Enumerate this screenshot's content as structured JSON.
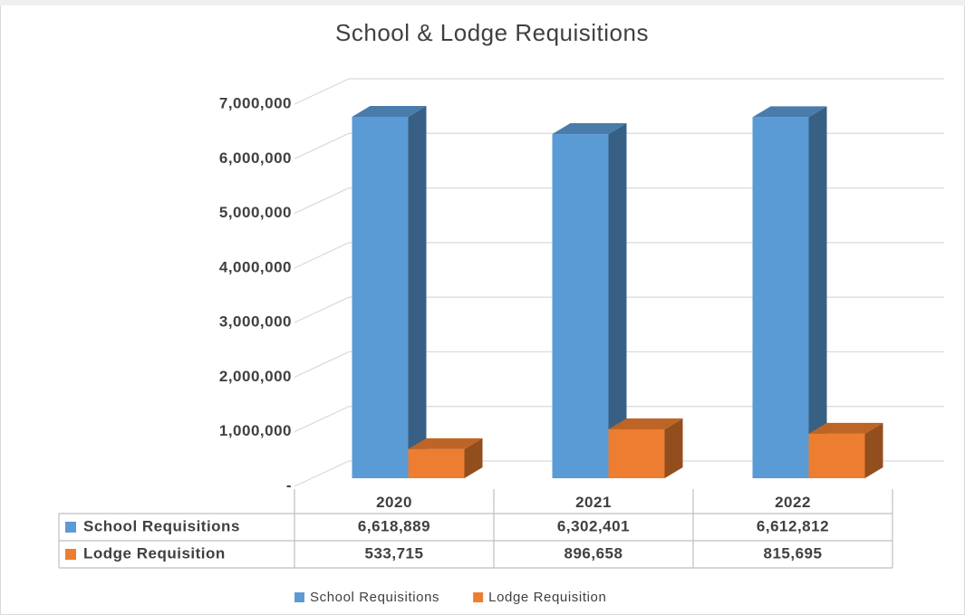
{
  "chart_data": {
    "type": "bar3d",
    "title": "School & Lodge Requisitions",
    "categories": [
      "2020",
      "2021",
      "2022"
    ],
    "series": [
      {
        "name": "School Requisitions",
        "color": "#5b9bd5",
        "values": [
          6618889,
          6302401,
          6612812
        ],
        "value_labels": [
          "6,618,889",
          "6,302,401",
          "6,612,812"
        ]
      },
      {
        "name": "Lodge Requisition",
        "color": "#ed7d31",
        "values": [
          533715,
          896658,
          815695
        ],
        "value_labels": [
          "533,715",
          "896,658",
          "815,695"
        ]
      }
    ],
    "ylim": [
      0,
      7000000
    ],
    "yticks": [
      {
        "value": 0,
        "label": "-"
      },
      {
        "value": 1000000,
        "label": "1,000,000"
      },
      {
        "value": 2000000,
        "label": "2,000,000"
      },
      {
        "value": 3000000,
        "label": "3,000,000"
      },
      {
        "value": 4000000,
        "label": "4,000,000"
      },
      {
        "value": 5000000,
        "label": "5,000,000"
      },
      {
        "value": 6000000,
        "label": "6,000,000"
      },
      {
        "value": 7000000,
        "label": "7,000,000"
      }
    ],
    "grid": true,
    "legend": "bottom",
    "data_table": true
  }
}
